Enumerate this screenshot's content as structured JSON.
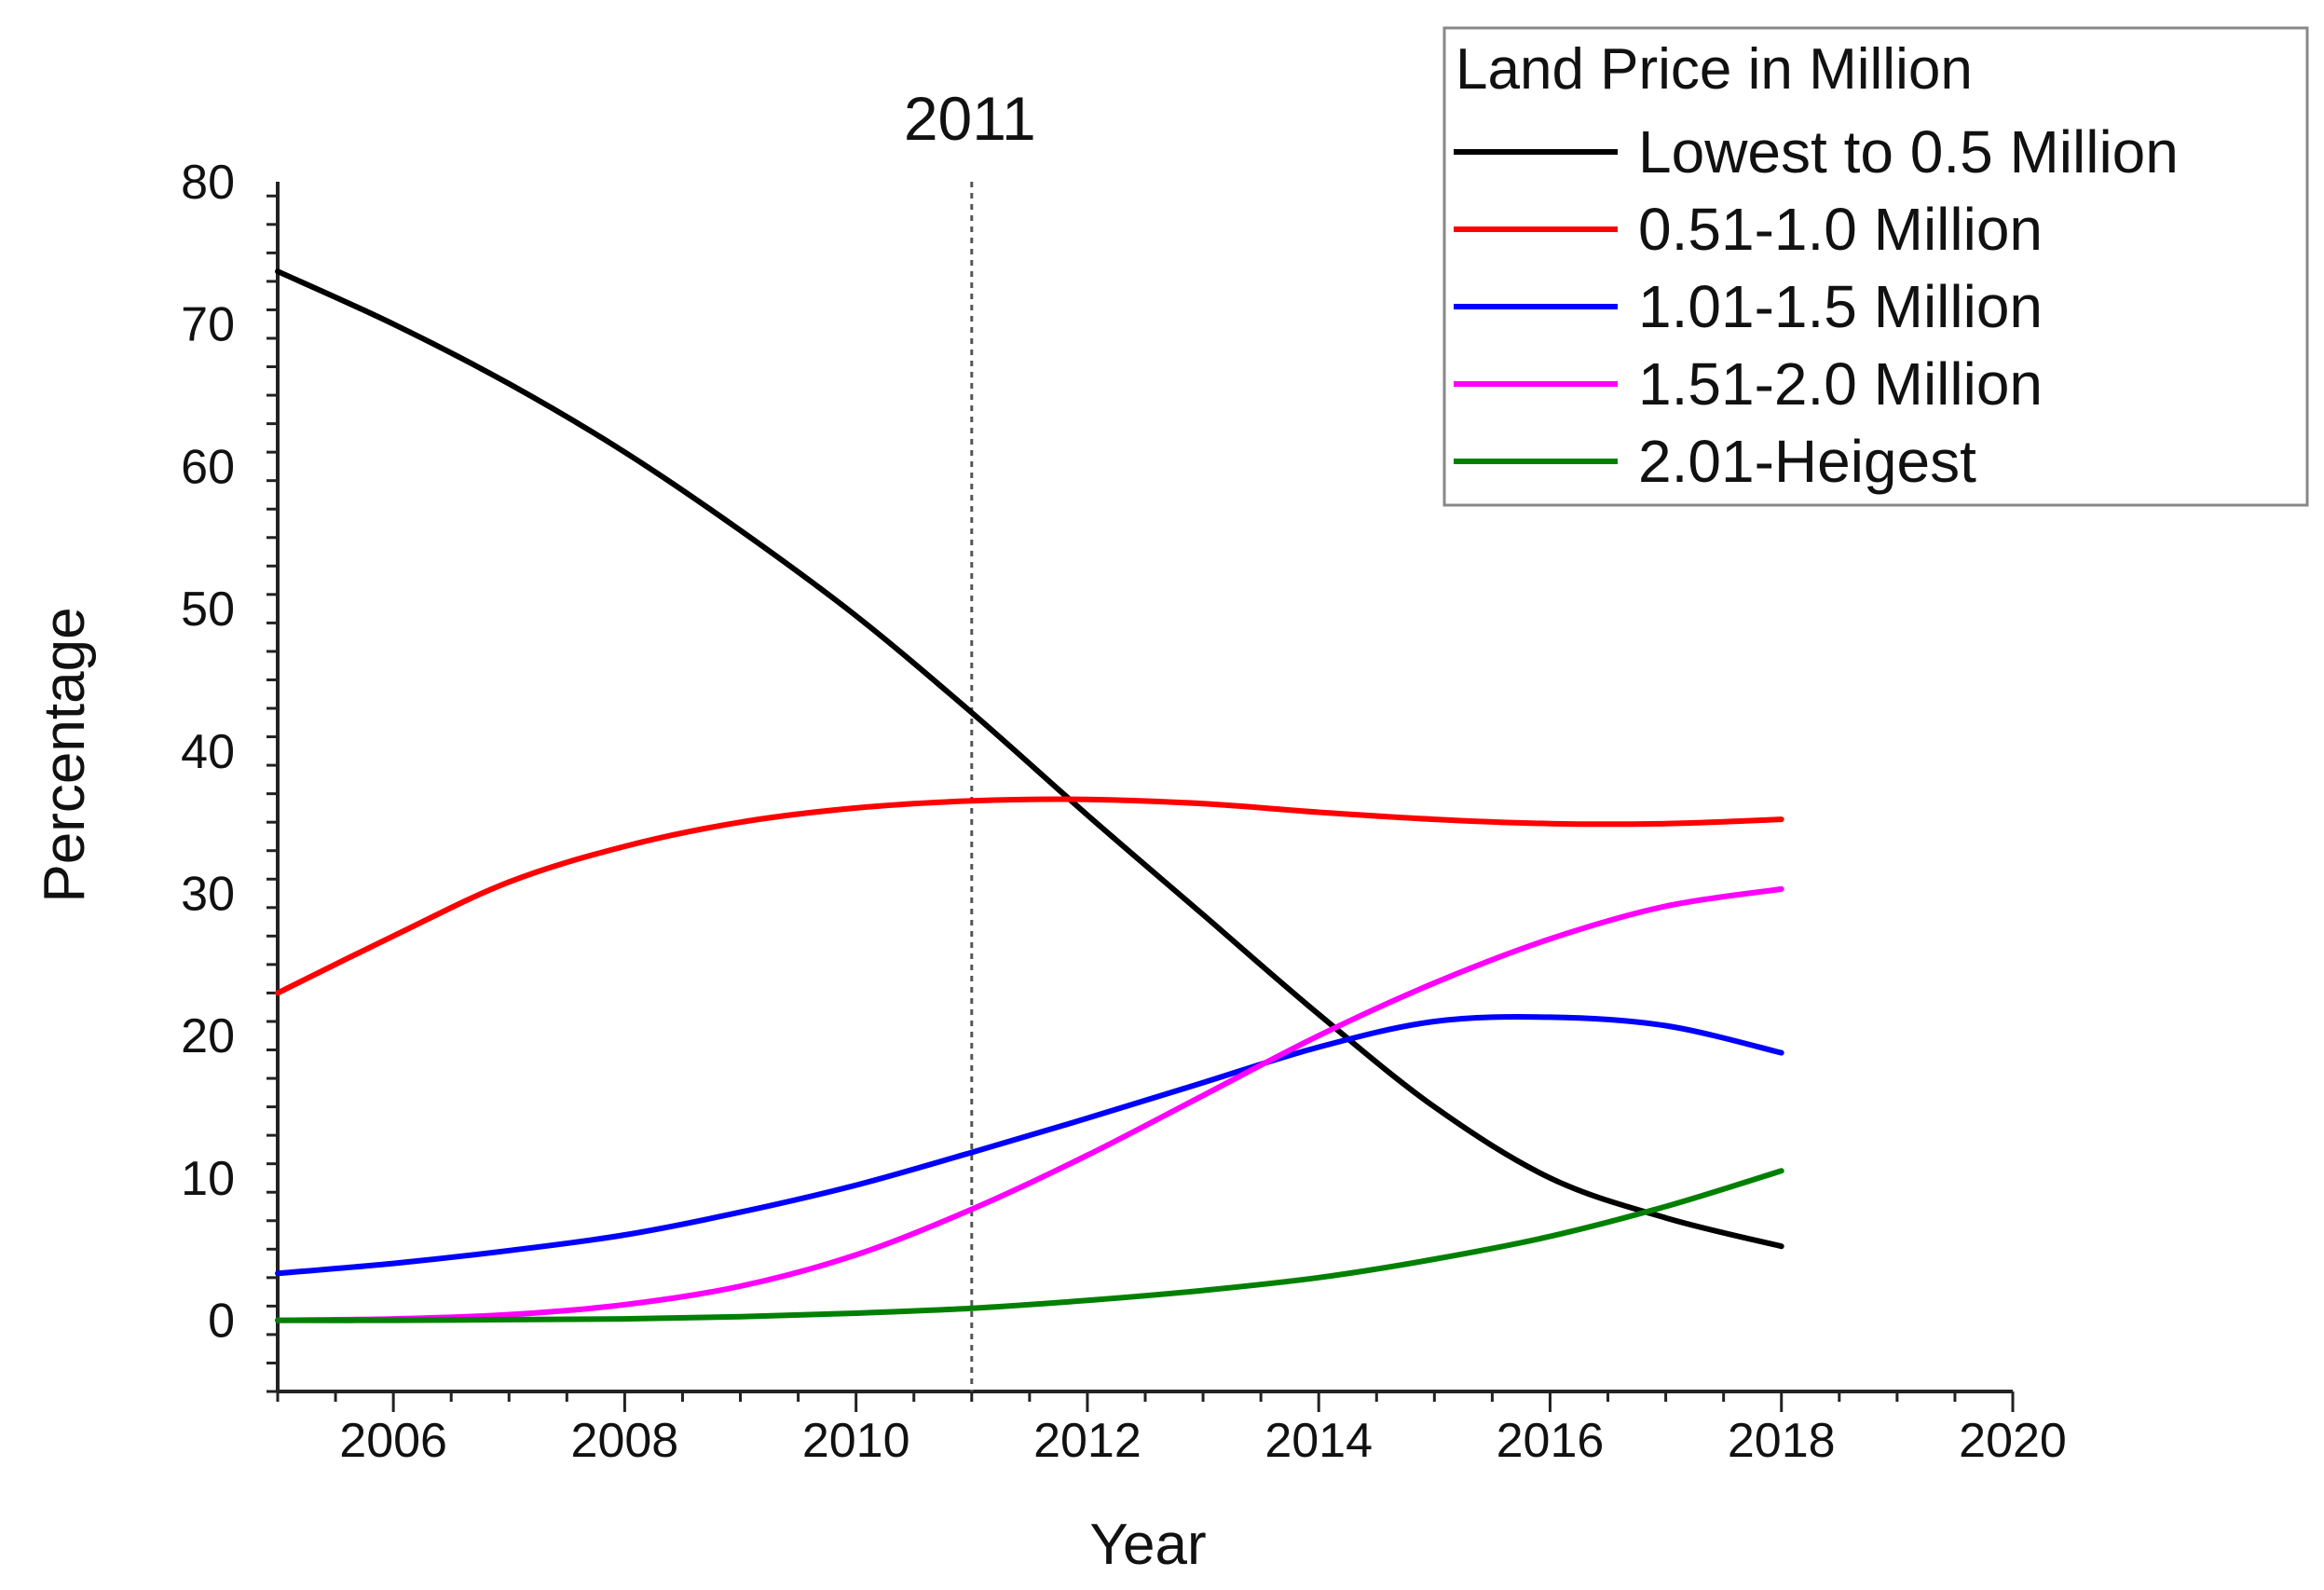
{
  "chart_data": {
    "type": "line",
    "title": "",
    "xlabel": "Year",
    "ylabel": "Percentage",
    "xlim": [
      2005,
      2020
    ],
    "ylim": [
      -5,
      80
    ],
    "x_ticks": [
      2006,
      2008,
      2010,
      2012,
      2014,
      2016,
      2018,
      2020
    ],
    "y_ticks": [
      0,
      10,
      20,
      30,
      40,
      50,
      60,
      70,
      80
    ],
    "grid": false,
    "reference_line": {
      "x": 2011,
      "label": "2011",
      "style": "dotted"
    },
    "legend": {
      "title": "Land Price in Million",
      "placement": "top-right"
    },
    "x": [
      2005,
      2006,
      2007,
      2008,
      2009,
      2010,
      2011,
      2012,
      2013,
      2014,
      2015,
      2016,
      2017,
      2018
    ],
    "series": [
      {
        "name": "Lowest to 0.5 Million",
        "color": "#000000",
        "values": [
          73.7,
          70,
          65.8,
          61,
          55.5,
          49.5,
          42.7,
          35.5,
          28.5,
          21.5,
          15,
          10,
          7.2,
          5.2
        ]
      },
      {
        "name": "0.51-1.0 Million",
        "color": "#ff0000",
        "values": [
          23,
          27,
          30.8,
          33.3,
          35,
          36,
          36.5,
          36.6,
          36.3,
          35.7,
          35.2,
          34.9,
          34.9,
          35.2
        ]
      },
      {
        "name": "1.01-1.5 Million",
        "color": "#0000ff",
        "values": [
          3.3,
          4,
          4.9,
          6,
          7.6,
          9.5,
          11.8,
          14.2,
          16.7,
          19.2,
          21,
          21.3,
          20.7,
          18.8
        ]
      },
      {
        "name": "1.51-2.0 Million",
        "color": "#ff00ff",
        "values": [
          0,
          0.1,
          0.4,
          1.1,
          2.4,
          4.6,
          7.8,
          11.6,
          15.8,
          20,
          23.7,
          26.8,
          29.1,
          30.3
        ]
      },
      {
        "name": "2.01-Heigest",
        "color": "#008000",
        "values": [
          0,
          0,
          0.05,
          0.1,
          0.25,
          0.5,
          0.85,
          1.4,
          2.1,
          3,
          4.3,
          5.9,
          8,
          10.5
        ]
      }
    ]
  }
}
